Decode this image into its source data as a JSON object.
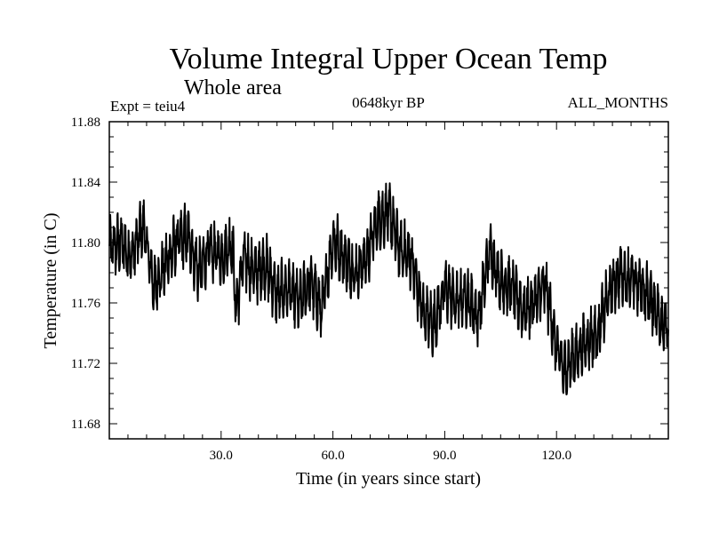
{
  "chart_data": {
    "type": "line",
    "title": "Volume Integral Upper Ocean Temp",
    "subtitle": "Whole area",
    "experiment": "Expt = teiu4",
    "period": "0648kyr BP",
    "months": "ALL_MONTHS",
    "xlabel": "Time (in years since start)",
    "ylabel": "Temperature (in C)",
    "xlim": [
      0,
      150
    ],
    "ylim": [
      11.67,
      11.88
    ],
    "x_ticks": [
      30,
      60,
      90,
      120
    ],
    "x_tick_labels": [
      "30.0",
      "60.0",
      "90.0",
      "120.0"
    ],
    "y_ticks": [
      11.68,
      11.72,
      11.76,
      11.8,
      11.84,
      11.88
    ],
    "y_tick_labels": [
      "11.68",
      "11.72",
      "11.76",
      "11.80",
      "11.84",
      "11.88"
    ],
    "sampling": "monthly",
    "series": [
      {
        "name": "Temperature",
        "x": [
          0,
          3,
          6,
          9,
          12,
          15,
          18,
          21,
          24,
          27,
          30,
          33,
          34,
          36,
          39,
          42,
          45,
          48,
          51,
          54,
          57,
          60,
          63,
          66,
          69,
          72,
          75,
          78,
          81,
          84,
          87,
          90,
          93,
          96,
          99,
          102,
          105,
          108,
          111,
          114,
          117,
          120,
          122,
          125,
          128,
          131,
          134,
          137,
          140,
          143,
          146,
          150
        ],
        "y": [
          11.795,
          11.8,
          11.79,
          11.812,
          11.77,
          11.785,
          11.8,
          11.805,
          11.78,
          11.795,
          11.79,
          11.8,
          11.755,
          11.79,
          11.78,
          11.785,
          11.765,
          11.77,
          11.76,
          11.775,
          11.755,
          11.802,
          11.79,
          11.78,
          11.79,
          11.815,
          11.82,
          11.795,
          11.79,
          11.755,
          11.745,
          11.77,
          11.76,
          11.765,
          11.75,
          11.795,
          11.775,
          11.77,
          11.755,
          11.76,
          11.772,
          11.73,
          11.715,
          11.725,
          11.735,
          11.74,
          11.765,
          11.78,
          11.775,
          11.77,
          11.76,
          11.74
        ]
      }
    ]
  }
}
